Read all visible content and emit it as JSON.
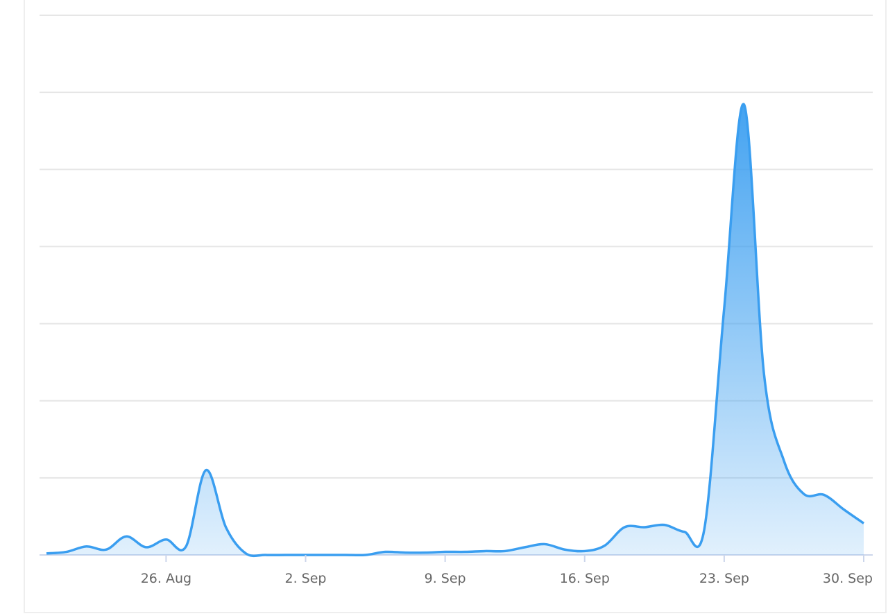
{
  "chart_data": {
    "type": "area",
    "categories": [
      null,
      null,
      null,
      null,
      null,
      null,
      "26. Aug",
      null,
      null,
      null,
      null,
      null,
      null,
      "2. Sep",
      null,
      null,
      null,
      null,
      null,
      null,
      "9. Sep",
      null,
      null,
      null,
      null,
      null,
      null,
      "16. Sep",
      null,
      null,
      null,
      null,
      null,
      null,
      "23. Sep",
      null,
      null,
      null,
      null,
      null,
      null,
      "30. Sep"
    ],
    "values": [
      0.02,
      0.04,
      0.11,
      0.07,
      0.24,
      0.1,
      0.2,
      0.11,
      1.1,
      0.36,
      0.02,
      0,
      0,
      0,
      0,
      0,
      0,
      0.04,
      0.03,
      0.03,
      0.04,
      0.04,
      0.05,
      0.05,
      0.1,
      0.14,
      0.07,
      0.05,
      0.12,
      0.36,
      0.36,
      0.39,
      0.3,
      0.33,
      3.2,
      5.84,
      2.34,
      1.22,
      0.79,
      0.78,
      0.59,
      0.41
    ],
    "color": "#3a9ef0",
    "ylim": [
      0,
      7
    ],
    "yticks": [
      0,
      1,
      2,
      3,
      4,
      5,
      6,
      7
    ],
    "grid": true
  }
}
